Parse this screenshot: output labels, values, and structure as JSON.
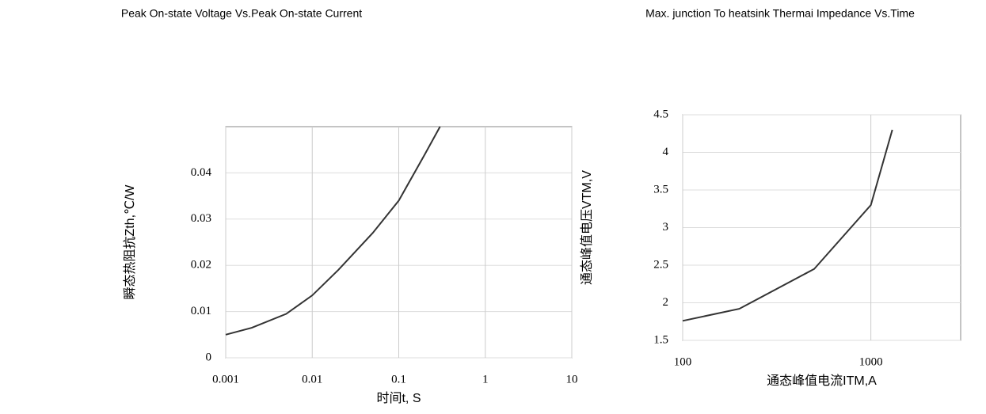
{
  "chart_data": [
    {
      "type": "line",
      "title": "Peak On-state Voltage Vs.Peak On-state Current",
      "x_label": "时间t, S",
      "y_label": "瞬态热阻抗Zth,℃/W",
      "log_x": true,
      "grid": true,
      "x": [
        0.001,
        0.002,
        0.005,
        0.01,
        0.02,
        0.05,
        0.1,
        0.2,
        0.3
      ],
      "series": [
        {
          "color": "#333333",
          "values": [
            0.005,
            0.0065,
            0.0095,
            0.0135,
            0.019,
            0.027,
            0.034,
            0.044,
            0.05
          ]
        }
      ],
      "xlim": [
        0.001,
        10
      ],
      "xticks": [
        0.001,
        0.01,
        0.1,
        1,
        10
      ],
      "ylim": [
        0,
        0.05
      ],
      "yticks": [
        0,
        0.01,
        0.02,
        0.03,
        0.04
      ]
    },
    {
      "type": "line",
      "title": "Max. junction To heatsink Thermai Impedance Vs.Time",
      "x_label": "通态峰值电流ITM,A",
      "y_label": "通态峰值电压VTM,V",
      "log_x": true,
      "grid": true,
      "x": [
        100,
        200,
        500,
        1000,
        1300
      ],
      "series": [
        {
          "color": "#333333",
          "values": [
            1.76,
            1.92,
            2.45,
            3.3,
            4.3
          ]
        }
      ],
      "xlim": [
        100,
        3000
      ],
      "xticks": [
        100,
        1000
      ],
      "ylim": [
        1.5,
        4.5
      ],
      "yticks": [
        1.5,
        2,
        2.5,
        3,
        3.5,
        4,
        4.5
      ]
    }
  ]
}
